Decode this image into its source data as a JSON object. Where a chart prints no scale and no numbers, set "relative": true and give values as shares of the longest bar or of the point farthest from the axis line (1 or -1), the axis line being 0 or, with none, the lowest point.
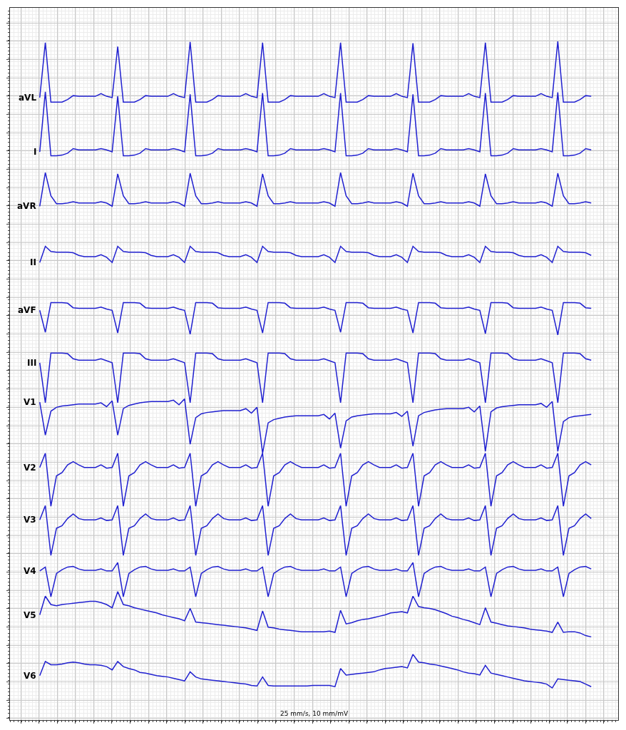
{
  "chart_data": {
    "type": "line",
    "relative": true,
    "grid": true,
    "legend": false,
    "tick_labels": false,
    "line_style": "solid",
    "annotations": [
      "25 mm/s, 10 mm/mV"
    ],
    "categories": [
      null,
      null,
      null,
      null,
      null,
      null,
      null,
      null,
      null,
      null,
      null,
      null,
      null,
      null,
      null,
      null,
      null,
      null,
      null,
      null,
      null,
      null,
      null,
      null,
      null,
      null,
      null,
      null,
      null,
      null,
      null,
      null,
      null,
      null,
      null,
      null,
      null,
      null,
      null,
      null,
      null,
      null,
      null,
      null,
      null,
      null,
      null,
      null,
      null,
      null,
      null,
      null,
      null,
      null,
      null,
      null,
      null,
      null,
      null,
      null,
      null,
      null,
      null,
      null,
      null,
      null,
      null,
      null,
      null,
      null,
      null,
      null,
      null,
      null,
      null,
      null,
      null,
      null,
      null,
      null,
      null,
      null,
      null,
      null,
      null,
      null,
      null,
      null,
      null,
      null,
      null,
      null,
      null,
      null,
      null,
      null,
      null,
      null,
      null,
      null
    ],
    "series": [
      {
        "name": "aVL",
        "color": "#2020d0",
        "values": [
          0.913,
          0.998,
          0.906,
          0.906,
          0.906,
          0.91,
          0.916,
          0.915,
          0.915,
          0.915,
          0.915,
          0.919,
          0.915,
          0.913,
          0.992,
          0.906,
          0.906,
          0.906,
          0.91,
          0.916,
          0.915,
          0.915,
          0.915,
          0.915,
          0.919,
          0.915,
          0.913,
          0.999,
          0.906,
          0.906,
          0.906,
          0.91,
          0.916,
          0.915,
          0.915,
          0.915,
          0.915,
          0.919,
          0.915,
          0.913,
          0.998,
          0.906,
          0.906,
          0.906,
          0.91,
          0.916,
          0.915,
          0.915,
          0.915,
          0.915,
          0.915,
          0.919,
          0.915,
          0.913,
          0.998,
          0.906,
          0.906,
          0.906,
          0.91,
          0.916,
          0.915,
          0.915,
          0.915,
          0.915,
          0.919,
          0.915,
          0.913,
          0.997,
          0.906,
          0.906,
          0.906,
          0.91,
          0.916,
          0.915,
          0.915,
          0.915,
          0.915,
          0.919,
          0.915,
          0.913,
          0.998,
          0.906,
          0.906,
          0.906,
          0.91,
          0.916,
          0.915,
          0.915,
          0.915,
          0.915,
          0.919,
          0.915,
          0.913,
          1.0,
          0.906,
          0.906,
          0.906,
          0.91,
          0.916,
          0.915
        ]
      },
      {
        "name": "I",
        "color": "#2020d0",
        "values": [
          0.829,
          0.922,
          0.823,
          0.823,
          0.824,
          0.827,
          0.834,
          0.832,
          0.832,
          0.832,
          0.832,
          0.834,
          0.832,
          0.829,
          0.915,
          0.823,
          0.823,
          0.824,
          0.827,
          0.834,
          0.832,
          0.832,
          0.832,
          0.832,
          0.834,
          0.832,
          0.829,
          0.918,
          0.823,
          0.823,
          0.824,
          0.827,
          0.834,
          0.832,
          0.832,
          0.832,
          0.832,
          0.834,
          0.832,
          0.829,
          0.92,
          0.823,
          0.823,
          0.824,
          0.827,
          0.834,
          0.832,
          0.832,
          0.832,
          0.832,
          0.832,
          0.834,
          0.832,
          0.829,
          0.92,
          0.823,
          0.823,
          0.824,
          0.827,
          0.834,
          0.832,
          0.832,
          0.832,
          0.832,
          0.834,
          0.832,
          0.829,
          0.918,
          0.823,
          0.823,
          0.824,
          0.827,
          0.834,
          0.832,
          0.832,
          0.832,
          0.832,
          0.834,
          0.832,
          0.829,
          0.92,
          0.823,
          0.823,
          0.824,
          0.827,
          0.834,
          0.832,
          0.832,
          0.832,
          0.832,
          0.834,
          0.832,
          0.829,
          0.921,
          0.823,
          0.823,
          0.824,
          0.827,
          0.834,
          0.832
        ]
      },
      {
        "name": "aVR",
        "color": "#2020d0",
        "values": [
          0.745,
          0.797,
          0.761,
          0.749,
          0.749,
          0.75,
          0.752,
          0.75,
          0.75,
          0.75,
          0.75,
          0.752,
          0.75,
          0.745,
          0.795,
          0.761,
          0.749,
          0.749,
          0.75,
          0.752,
          0.75,
          0.75,
          0.75,
          0.75,
          0.752,
          0.75,
          0.745,
          0.796,
          0.761,
          0.749,
          0.749,
          0.75,
          0.752,
          0.75,
          0.75,
          0.75,
          0.75,
          0.752,
          0.75,
          0.745,
          0.795,
          0.761,
          0.749,
          0.749,
          0.75,
          0.752,
          0.75,
          0.75,
          0.75,
          0.75,
          0.75,
          0.752,
          0.75,
          0.745,
          0.797,
          0.761,
          0.749,
          0.749,
          0.75,
          0.752,
          0.75,
          0.75,
          0.75,
          0.75,
          0.752,
          0.75,
          0.745,
          0.796,
          0.761,
          0.749,
          0.749,
          0.75,
          0.752,
          0.75,
          0.75,
          0.75,
          0.75,
          0.752,
          0.75,
          0.745,
          0.795,
          0.761,
          0.749,
          0.749,
          0.75,
          0.752,
          0.75,
          0.75,
          0.75,
          0.75,
          0.752,
          0.75,
          0.745,
          0.796,
          0.761,
          0.749,
          0.749,
          0.75,
          0.752,
          0.75
        ]
      },
      {
        "name": "II",
        "color": "#2020d0",
        "values": [
          0.658,
          0.683,
          0.675,
          0.674,
          0.674,
          0.674,
          0.673,
          0.669,
          0.667,
          0.667,
          0.667,
          0.67,
          0.666,
          0.658,
          0.683,
          0.675,
          0.674,
          0.674,
          0.674,
          0.673,
          0.669,
          0.667,
          0.667,
          0.667,
          0.67,
          0.666,
          0.658,
          0.683,
          0.675,
          0.674,
          0.674,
          0.674,
          0.673,
          0.669,
          0.667,
          0.667,
          0.667,
          0.67,
          0.666,
          0.658,
          0.683,
          0.675,
          0.674,
          0.674,
          0.674,
          0.673,
          0.669,
          0.667,
          0.667,
          0.667,
          0.667,
          0.67,
          0.666,
          0.658,
          0.683,
          0.675,
          0.674,
          0.674,
          0.674,
          0.673,
          0.669,
          0.667,
          0.667,
          0.667,
          0.67,
          0.666,
          0.658,
          0.683,
          0.675,
          0.674,
          0.674,
          0.674,
          0.673,
          0.669,
          0.667,
          0.667,
          0.667,
          0.67,
          0.666,
          0.658,
          0.683,
          0.675,
          0.674,
          0.674,
          0.674,
          0.673,
          0.669,
          0.667,
          0.667,
          0.667,
          0.67,
          0.666,
          0.658,
          0.683,
          0.675,
          0.674,
          0.674,
          0.674,
          0.673,
          0.669
        ]
      },
      {
        "name": "aVF",
        "color": "#2020d0",
        "values": [
          0.584,
          0.55,
          0.596,
          0.596,
          0.596,
          0.595,
          0.588,
          0.587,
          0.587,
          0.587,
          0.587,
          0.589,
          0.586,
          0.584,
          0.549,
          0.596,
          0.596,
          0.596,
          0.595,
          0.588,
          0.587,
          0.587,
          0.587,
          0.587,
          0.589,
          0.586,
          0.584,
          0.547,
          0.596,
          0.596,
          0.596,
          0.595,
          0.588,
          0.587,
          0.587,
          0.587,
          0.587,
          0.589,
          0.586,
          0.584,
          0.549,
          0.596,
          0.596,
          0.596,
          0.595,
          0.588,
          0.587,
          0.587,
          0.587,
          0.587,
          0.587,
          0.589,
          0.586,
          0.584,
          0.55,
          0.596,
          0.596,
          0.596,
          0.595,
          0.588,
          0.587,
          0.587,
          0.587,
          0.587,
          0.589,
          0.586,
          0.584,
          0.549,
          0.596,
          0.596,
          0.596,
          0.595,
          0.588,
          0.587,
          0.587,
          0.587,
          0.587,
          0.589,
          0.586,
          0.584,
          0.548,
          0.596,
          0.596,
          0.596,
          0.595,
          0.588,
          0.587,
          0.587,
          0.587,
          0.587,
          0.589,
          0.586,
          0.584,
          0.546,
          0.596,
          0.596,
          0.596,
          0.595,
          0.588,
          0.587
        ]
      },
      {
        "name": "III",
        "color": "#2020d0",
        "values": [
          0.503,
          0.441,
          0.518,
          0.518,
          0.518,
          0.517,
          0.509,
          0.507,
          0.507,
          0.507,
          0.507,
          0.509,
          0.506,
          0.503,
          0.441,
          0.518,
          0.518,
          0.518,
          0.517,
          0.509,
          0.507,
          0.507,
          0.507,
          0.507,
          0.509,
          0.506,
          0.503,
          0.441,
          0.518,
          0.518,
          0.518,
          0.517,
          0.509,
          0.507,
          0.507,
          0.507,
          0.507,
          0.509,
          0.506,
          0.503,
          0.441,
          0.518,
          0.518,
          0.518,
          0.517,
          0.509,
          0.507,
          0.507,
          0.507,
          0.507,
          0.507,
          0.509,
          0.506,
          0.503,
          0.441,
          0.518,
          0.518,
          0.518,
          0.517,
          0.509,
          0.507,
          0.507,
          0.507,
          0.507,
          0.509,
          0.506,
          0.503,
          0.441,
          0.518,
          0.518,
          0.518,
          0.517,
          0.509,
          0.507,
          0.507,
          0.507,
          0.507,
          0.509,
          0.506,
          0.503,
          0.441,
          0.518,
          0.518,
          0.518,
          0.517,
          0.509,
          0.507,
          0.507,
          0.507,
          0.507,
          0.509,
          0.506,
          0.503,
          0.441,
          0.518,
          0.518,
          0.518,
          0.517,
          0.509,
          0.507
        ]
      },
      {
        "name": "V1",
        "color": "#2020d0",
        "values": [
          0.442,
          0.391,
          0.428,
          0.434,
          0.436,
          0.437,
          0.438,
          0.439,
          0.439,
          0.439,
          0.439,
          0.441,
          0.435,
          0.444,
          0.391,
          0.432,
          0.437,
          0.439,
          0.441,
          0.442,
          0.443,
          0.443,
          0.443,
          0.443,
          0.445,
          0.438,
          0.447,
          0.377,
          0.418,
          0.424,
          0.426,
          0.427,
          0.428,
          0.429,
          0.429,
          0.429,
          0.429,
          0.432,
          0.425,
          0.434,
          0.363,
          0.41,
          0.415,
          0.417,
          0.419,
          0.42,
          0.421,
          0.421,
          0.421,
          0.421,
          0.421,
          0.423,
          0.416,
          0.425,
          0.371,
          0.413,
          0.419,
          0.421,
          0.422,
          0.423,
          0.424,
          0.424,
          0.424,
          0.424,
          0.426,
          0.42,
          0.428,
          0.374,
          0.421,
          0.426,
          0.428,
          0.43,
          0.431,
          0.432,
          0.432,
          0.432,
          0.432,
          0.434,
          0.427,
          0.436,
          0.366,
          0.427,
          0.433,
          0.435,
          0.436,
          0.437,
          0.438,
          0.438,
          0.438,
          0.438,
          0.44,
          0.434,
          0.443,
          0.366,
          0.412,
          0.418,
          0.42,
          0.421,
          0.422,
          0.423
        ]
      },
      {
        "name": "V2",
        "color": "#2020d0",
        "values": [
          0.341,
          0.363,
          0.281,
          0.328,
          0.333,
          0.345,
          0.35,
          0.345,
          0.341,
          0.341,
          0.341,
          0.345,
          0.34,
          0.341,
          0.363,
          0.281,
          0.328,
          0.333,
          0.345,
          0.35,
          0.345,
          0.341,
          0.341,
          0.341,
          0.345,
          0.34,
          0.341,
          0.363,
          0.281,
          0.328,
          0.333,
          0.345,
          0.35,
          0.345,
          0.341,
          0.341,
          0.341,
          0.345,
          0.34,
          0.341,
          0.363,
          0.281,
          0.328,
          0.333,
          0.345,
          0.35,
          0.345,
          0.341,
          0.341,
          0.341,
          0.341,
          0.345,
          0.34,
          0.341,
          0.363,
          0.281,
          0.328,
          0.333,
          0.345,
          0.35,
          0.345,
          0.341,
          0.341,
          0.341,
          0.345,
          0.34,
          0.341,
          0.363,
          0.281,
          0.328,
          0.333,
          0.345,
          0.35,
          0.345,
          0.341,
          0.341,
          0.341,
          0.345,
          0.34,
          0.341,
          0.363,
          0.281,
          0.328,
          0.333,
          0.345,
          0.35,
          0.345,
          0.341,
          0.341,
          0.341,
          0.345,
          0.34,
          0.341,
          0.363,
          0.281,
          0.328,
          0.333,
          0.345,
          0.35,
          0.345
        ]
      },
      {
        "name": "V3",
        "color": "#2020d0",
        "values": [
          0.26,
          0.282,
          0.205,
          0.247,
          0.251,
          0.262,
          0.269,
          0.262,
          0.26,
          0.26,
          0.26,
          0.263,
          0.259,
          0.26,
          0.282,
          0.205,
          0.247,
          0.251,
          0.262,
          0.269,
          0.262,
          0.26,
          0.26,
          0.26,
          0.263,
          0.259,
          0.26,
          0.282,
          0.205,
          0.247,
          0.251,
          0.262,
          0.269,
          0.262,
          0.26,
          0.26,
          0.26,
          0.263,
          0.259,
          0.26,
          0.282,
          0.205,
          0.247,
          0.251,
          0.262,
          0.269,
          0.262,
          0.26,
          0.26,
          0.26,
          0.26,
          0.263,
          0.259,
          0.26,
          0.282,
          0.205,
          0.247,
          0.251,
          0.262,
          0.269,
          0.262,
          0.26,
          0.26,
          0.26,
          0.263,
          0.259,
          0.26,
          0.282,
          0.205,
          0.247,
          0.251,
          0.262,
          0.269,
          0.262,
          0.26,
          0.26,
          0.26,
          0.263,
          0.259,
          0.26,
          0.282,
          0.205,
          0.247,
          0.251,
          0.262,
          0.269,
          0.262,
          0.26,
          0.26,
          0.26,
          0.263,
          0.259,
          0.26,
          0.282,
          0.205,
          0.247,
          0.251,
          0.262,
          0.269,
          0.262
        ]
      },
      {
        "name": "V4",
        "color": "#2020d0",
        "values": [
          0.181,
          0.187,
          0.141,
          0.177,
          0.183,
          0.187,
          0.188,
          0.184,
          0.182,
          0.182,
          0.182,
          0.184,
          0.181,
          0.181,
          0.194,
          0.141,
          0.177,
          0.183,
          0.187,
          0.188,
          0.184,
          0.182,
          0.182,
          0.182,
          0.184,
          0.181,
          0.181,
          0.187,
          0.141,
          0.177,
          0.183,
          0.187,
          0.188,
          0.184,
          0.182,
          0.182,
          0.182,
          0.184,
          0.181,
          0.181,
          0.187,
          0.141,
          0.177,
          0.183,
          0.187,
          0.188,
          0.184,
          0.182,
          0.182,
          0.182,
          0.182,
          0.184,
          0.181,
          0.181,
          0.187,
          0.141,
          0.177,
          0.183,
          0.187,
          0.188,
          0.184,
          0.182,
          0.182,
          0.182,
          0.184,
          0.181,
          0.181,
          0.194,
          0.141,
          0.177,
          0.183,
          0.187,
          0.188,
          0.184,
          0.182,
          0.182,
          0.182,
          0.184,
          0.181,
          0.181,
          0.187,
          0.141,
          0.177,
          0.183,
          0.187,
          0.188,
          0.184,
          0.182,
          0.182,
          0.182,
          0.184,
          0.181,
          0.181,
          0.187,
          0.141,
          0.177,
          0.183,
          0.187,
          0.188,
          0.184
        ]
      },
      {
        "name": "V5",
        "color": "#2020d0",
        "values": [
          0.113,
          0.142,
          0.129,
          0.127,
          0.129,
          0.13,
          0.131,
          0.132,
          0.133,
          0.134,
          0.134,
          0.132,
          0.129,
          0.124,
          0.149,
          0.129,
          0.127,
          0.124,
          0.122,
          0.12,
          0.118,
          0.116,
          0.113,
          0.111,
          0.109,
          0.107,
          0.104,
          0.123,
          0.102,
          0.101,
          0.1,
          0.099,
          0.098,
          0.097,
          0.096,
          0.095,
          0.094,
          0.093,
          0.091,
          0.089,
          0.119,
          0.094,
          0.093,
          0.091,
          0.09,
          0.089,
          0.088,
          0.087,
          0.087,
          0.087,
          0.087,
          0.087,
          0.088,
          0.086,
          0.12,
          0.099,
          0.101,
          0.104,
          0.106,
          0.107,
          0.109,
          0.111,
          0.113,
          0.116,
          0.117,
          0.118,
          0.116,
          0.142,
          0.126,
          0.124,
          0.123,
          0.121,
          0.118,
          0.115,
          0.111,
          0.109,
          0.106,
          0.104,
          0.101,
          0.098,
          0.124,
          0.102,
          0.1,
          0.098,
          0.096,
          0.095,
          0.094,
          0.093,
          0.091,
          0.09,
          0.089,
          0.088,
          0.086,
          0.102,
          0.086,
          0.087,
          0.087,
          0.085,
          0.081,
          0.079
        ]
      },
      {
        "name": "V6",
        "color": "#2020d0",
        "values": [
          0.019,
          0.041,
          0.036,
          0.036,
          0.037,
          0.039,
          0.04,
          0.039,
          0.037,
          0.036,
          0.036,
          0.035,
          0.033,
          0.028,
          0.041,
          0.033,
          0.03,
          0.028,
          0.024,
          0.023,
          0.021,
          0.019,
          0.018,
          0.017,
          0.015,
          0.013,
          0.011,
          0.025,
          0.017,
          0.014,
          0.013,
          0.012,
          0.011,
          0.01,
          0.009,
          0.008,
          0.007,
          0.006,
          0.004,
          0.003,
          0.017,
          0.004,
          0.003,
          0.003,
          0.003,
          0.003,
          0.003,
          0.003,
          0.003,
          0.004,
          0.004,
          0.004,
          0.004,
          0.002,
          0.03,
          0.02,
          0.021,
          0.022,
          0.023,
          0.024,
          0.025,
          0.028,
          0.03,
          0.031,
          0.032,
          0.033,
          0.031,
          0.052,
          0.04,
          0.039,
          0.037,
          0.036,
          0.034,
          0.032,
          0.03,
          0.028,
          0.025,
          0.023,
          0.022,
          0.02,
          0.035,
          0.023,
          0.021,
          0.019,
          0.017,
          0.015,
          0.013,
          0.011,
          0.01,
          0.009,
          0.008,
          0.006,
          0.0,
          0.014,
          0.013,
          0.012,
          0.011,
          0.01,
          0.006,
          0.002
        ]
      }
    ]
  }
}
